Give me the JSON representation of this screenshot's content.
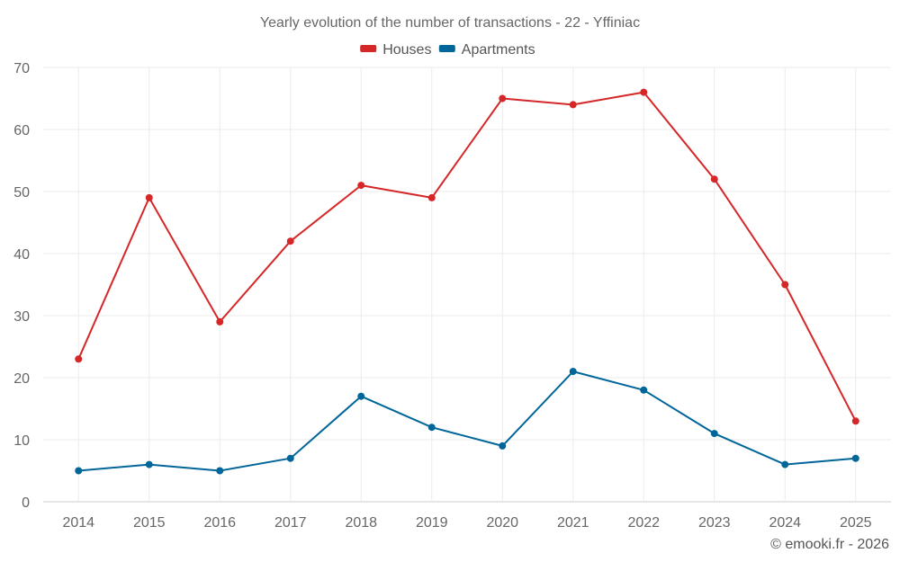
{
  "chart_data": {
    "type": "line",
    "title": "Yearly evolution of the number of transactions - 22 - Yffiniac",
    "xlabel": "",
    "ylabel": "",
    "categories": [
      "2014",
      "2015",
      "2016",
      "2017",
      "2018",
      "2019",
      "2020",
      "2021",
      "2022",
      "2023",
      "2024",
      "2025"
    ],
    "ylim": [
      0,
      70
    ],
    "yticks": [
      0,
      10,
      20,
      30,
      40,
      50,
      60,
      70
    ],
    "grid": true,
    "legend_position": "top-center",
    "series": [
      {
        "name": "Houses",
        "color": "#d62728",
        "values": [
          23,
          49,
          29,
          42,
          51,
          49,
          65,
          64,
          66,
          52,
          35,
          13
        ]
      },
      {
        "name": "Apartments",
        "color": "#006699",
        "values": [
          5,
          6,
          5,
          7,
          17,
          12,
          9,
          21,
          18,
          11,
          6,
          7
        ]
      }
    ]
  },
  "credit": "© emooki.fr - 2026"
}
